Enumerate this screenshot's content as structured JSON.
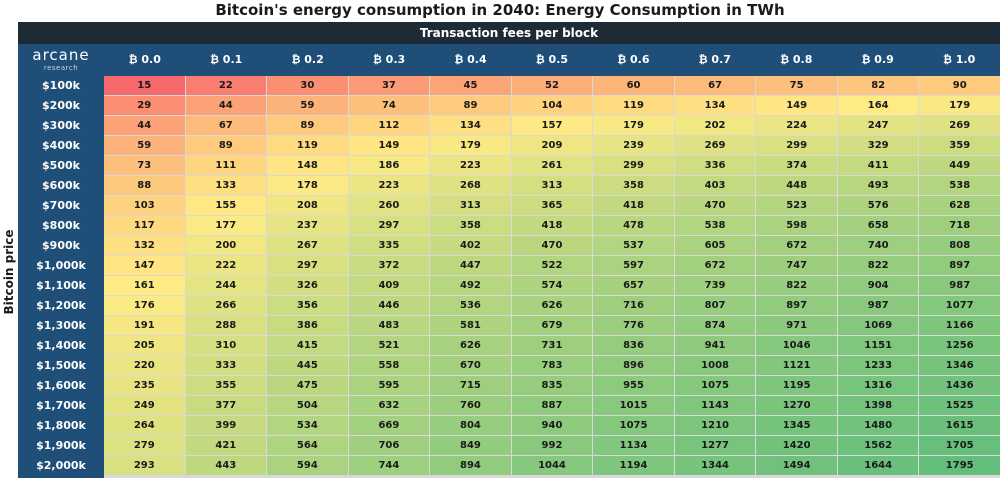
{
  "title": "Bitcoin's energy consumption in 2040: Energy Consumption in TWh",
  "logo": {
    "main": "arcane",
    "sub": "research"
  },
  "chart_data": {
    "type": "heatmap",
    "title": "Bitcoin's energy consumption in 2040: Energy Consumption in TWh",
    "xlabel": "Transaction fees per block",
    "ylabel": "Bitcoin price",
    "columns": [
      "₿ 0.0",
      "₿ 0.1",
      "₿ 0.2",
      "₿ 0.3",
      "₿ 0.4",
      "₿ 0.5",
      "₿ 0.6",
      "₿ 0.7",
      "₿ 0.8",
      "₿ 0.9",
      "₿ 1.0"
    ],
    "rows": [
      "$100k",
      "$200k",
      "$300k",
      "$400k",
      "$500k",
      "$600k",
      "$700k",
      "$800k",
      "$900k",
      "$1,000k",
      "$1,100k",
      "$1,200k",
      "$1,300k",
      "$1,400k",
      "$1,500k",
      "$1,600k",
      "$1,700k",
      "$1,800k",
      "$1,900k",
      "$2,000k"
    ],
    "values": [
      [
        15,
        22,
        30,
        37,
        45,
        52,
        60,
        67,
        75,
        82,
        90
      ],
      [
        29,
        44,
        59,
        74,
        89,
        104,
        119,
        134,
        149,
        164,
        179
      ],
      [
        44,
        67,
        89,
        112,
        134,
        157,
        179,
        202,
        224,
        247,
        269
      ],
      [
        59,
        89,
        119,
        149,
        179,
        209,
        239,
        269,
        299,
        329,
        359
      ],
      [
        73,
        111,
        148,
        186,
        223,
        261,
        299,
        336,
        374,
        411,
        449
      ],
      [
        88,
        133,
        178,
        223,
        268,
        313,
        358,
        403,
        448,
        493,
        538
      ],
      [
        103,
        155,
        208,
        260,
        313,
        365,
        418,
        470,
        523,
        576,
        628
      ],
      [
        117,
        177,
        237,
        297,
        358,
        418,
        478,
        538,
        598,
        658,
        718
      ],
      [
        132,
        200,
        267,
        335,
        402,
        470,
        537,
        605,
        672,
        740,
        808
      ],
      [
        147,
        222,
        297,
        372,
        447,
        522,
        597,
        672,
        747,
        822,
        897
      ],
      [
        161,
        244,
        326,
        409,
        492,
        574,
        657,
        739,
        822,
        904,
        987
      ],
      [
        176,
        266,
        356,
        446,
        536,
        626,
        716,
        807,
        897,
        987,
        1077
      ],
      [
        191,
        288,
        386,
        483,
        581,
        679,
        776,
        874,
        971,
        1069,
        1166
      ],
      [
        205,
        310,
        415,
        521,
        626,
        731,
        836,
        941,
        1046,
        1151,
        1256
      ],
      [
        220,
        333,
        445,
        558,
        670,
        783,
        896,
        1008,
        1121,
        1233,
        1346
      ],
      [
        235,
        355,
        475,
        595,
        715,
        835,
        955,
        1075,
        1195,
        1316,
        1436
      ],
      [
        249,
        377,
        504,
        632,
        760,
        887,
        1015,
        1143,
        1270,
        1398,
        1525
      ],
      [
        264,
        399,
        534,
        669,
        804,
        940,
        1075,
        1210,
        1345,
        1480,
        1615
      ],
      [
        279,
        421,
        564,
        706,
        849,
        992,
        1134,
        1277,
        1420,
        1562,
        1705
      ],
      [
        293,
        443,
        594,
        744,
        894,
        1044,
        1194,
        1344,
        1494,
        1644,
        1795
      ]
    ],
    "color_scale": {
      "low": "#f8696b",
      "mid": "#ffeb84",
      "high": "#63be7b"
    }
  }
}
